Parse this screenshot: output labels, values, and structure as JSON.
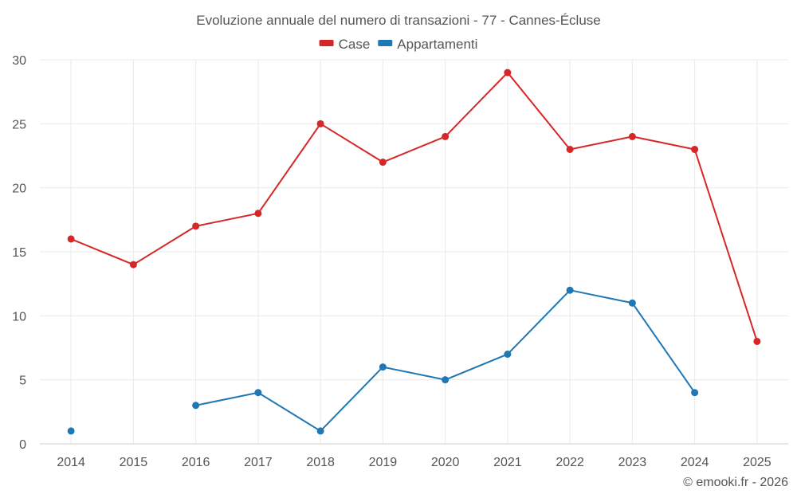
{
  "chart_data": {
    "type": "line",
    "title": "Evoluzione annuale del numero di transazioni - 77 - Cannes-Écluse",
    "categories": [
      "2014",
      "2015",
      "2016",
      "2017",
      "2018",
      "2019",
      "2020",
      "2021",
      "2022",
      "2023",
      "2024",
      "2025"
    ],
    "series": [
      {
        "name": "Case",
        "color": "#d62728",
        "values": [
          16,
          14,
          17,
          18,
          25,
          22,
          24,
          29,
          23,
          24,
          23,
          8
        ]
      },
      {
        "name": "Appartamenti",
        "color": "#1f77b4",
        "values": [
          1,
          null,
          3,
          4,
          1,
          6,
          5,
          7,
          12,
          11,
          4,
          null
        ]
      }
    ],
    "ylim": [
      0,
      30
    ],
    "yticks": [
      0,
      5,
      10,
      15,
      20,
      25,
      30
    ],
    "legend_position": "top-center",
    "grid": true
  },
  "credit": "© emooki.fr - 2026"
}
